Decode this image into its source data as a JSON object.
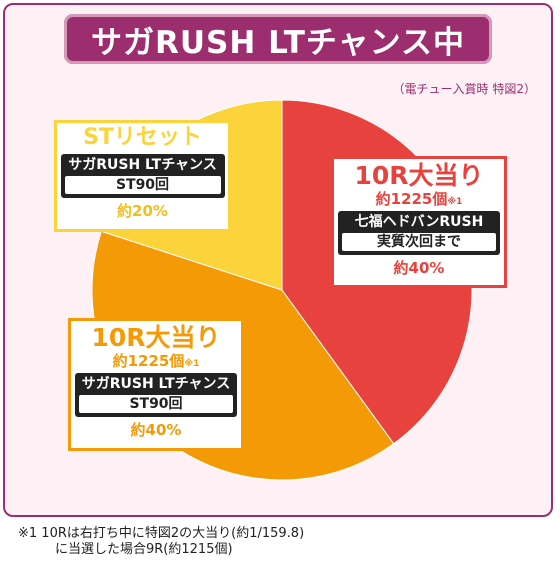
{
  "header": {
    "title": "サガRUSH LTチャンス中",
    "condition": "（電チュー入賞時 特図2）"
  },
  "chart_data": {
    "type": "pie",
    "title": "サガRUSH LTチャンス中",
    "slices": [
      {
        "label": "10R大当り",
        "payout": "約1225個",
        "note_mark": "※1",
        "mode": "七福ヘドバンRUSH",
        "mode_detail": "実質次回まで",
        "percent_label": "約40%",
        "value": 40,
        "color": "#e8423f"
      },
      {
        "label": "10R大当り",
        "payout": "約1225個",
        "note_mark": "※1",
        "mode": "サガRUSH LTチャンス",
        "mode_detail": "ST90回",
        "percent_label": "約40%",
        "value": 40,
        "color": "#f39a06"
      },
      {
        "label": "STリセット",
        "payout": "",
        "note_mark": "",
        "mode": "サガRUSH LTチャンス",
        "mode_detail": "ST90回",
        "percent_label": "約20%",
        "value": 20,
        "color": "#fbd33b"
      }
    ]
  },
  "footnote": {
    "line1": "※1  10Rは右打ち中に特図2の大当り(約1/159.8)",
    "line2": "に当選した場合9R(約1215個)"
  }
}
